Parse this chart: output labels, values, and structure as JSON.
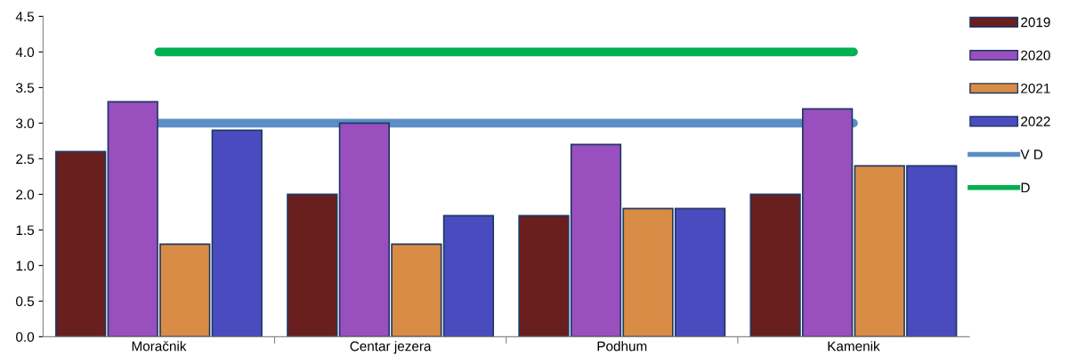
{
  "chart_data": {
    "type": "bar",
    "categories": [
      "Moračnik",
      "Centar jezera",
      "Podhum",
      "Kamenik"
    ],
    "series": [
      {
        "name": "2019",
        "color": "#6a1f1f",
        "values": [
          2.6,
          2.0,
          1.7,
          2.0
        ]
      },
      {
        "name": "2020",
        "color": "#9a4fbf",
        "values": [
          3.3,
          3.0,
          2.7,
          3.2
        ]
      },
      {
        "name": "2021",
        "color": "#d98c45",
        "values": [
          1.3,
          1.3,
          1.8,
          2.4
        ]
      },
      {
        "name": "2022",
        "color": "#4b4bc0",
        "values": [
          2.9,
          1.7,
          1.8,
          2.4
        ]
      },
      {
        "name": "V D",
        "type": "line",
        "color": "#5b8ec6",
        "values": [
          3.0,
          3.0,
          3.0,
          3.0
        ]
      },
      {
        "name": "D",
        "type": "line",
        "color": "#00b050",
        "values": [
          4.0,
          4.0,
          4.0,
          4.0
        ]
      }
    ],
    "ylim": [
      0,
      4.5
    ],
    "yticks": [
      {
        "value": 0,
        "label": "0.0"
      },
      {
        "value": 0.5,
        "label": "0.5"
      },
      {
        "value": 1,
        "label": "1.0"
      },
      {
        "value": 1.5,
        "label": "1.5"
      },
      {
        "value": 2,
        "label": "2.0"
      },
      {
        "value": 2.5,
        "label": "2.5"
      },
      {
        "value": 3,
        "label": "3.0"
      },
      {
        "value": 3.5,
        "label": "3.5"
      },
      {
        "value": 4,
        "label": "4.0"
      },
      {
        "value": 4.5,
        "label": "4.5"
      }
    ],
    "grid": false,
    "legend": "right"
  }
}
